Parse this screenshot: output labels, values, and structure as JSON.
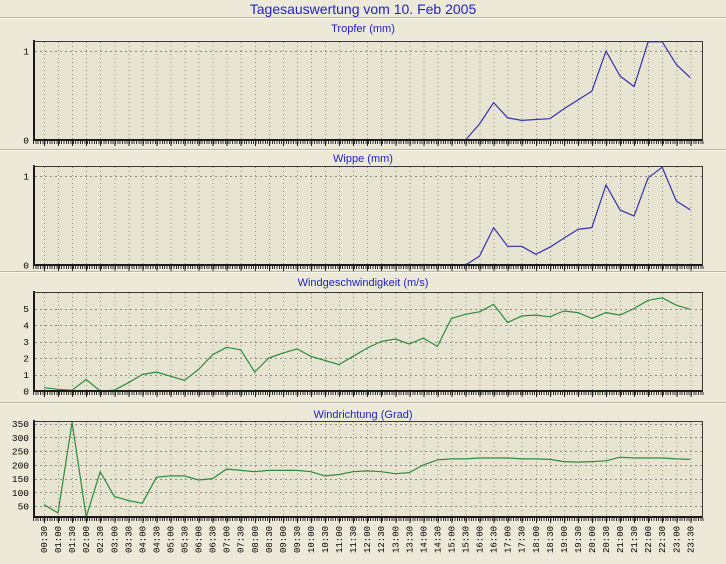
{
  "header": {
    "title": "Tagesauswertung vom 10. Feb 2005"
  },
  "colors": {
    "page_background": "#ece9d8",
    "plot_background": "#e8e4d2",
    "grid": "#8c8c87",
    "axis": "#1a1a1a",
    "title_blue": "#2222cc",
    "rain_line_blue": "#3232b4",
    "wind_line_green": "#2d8c3c"
  },
  "chart_data": [
    {
      "type": "line",
      "title": "Tropfer (mm)",
      "line_color": "#3232b4",
      "grid": "dashed",
      "y_ticks": [
        0,
        1
      ],
      "y_grid": [
        1
      ],
      "y_range": [
        0,
        1.113
      ],
      "categories": [
        "00:30",
        "01:00",
        "01:30",
        "02:00",
        "02:30",
        "03:00",
        "03:30",
        "04:00",
        "04:30",
        "05:00",
        "05:30",
        "06:00",
        "06:30",
        "07:00",
        "07:30",
        "08:00",
        "08:30",
        "09:00",
        "09:30",
        "10:00",
        "10:30",
        "11:00",
        "11:30",
        "12:00",
        "12:30",
        "13:00",
        "13:30",
        "14:00",
        "14:30",
        "15:00",
        "15:30",
        "16:00",
        "16:30",
        "17:00",
        "17:30",
        "18:00",
        "18:30",
        "19:00",
        "19:30",
        "20:00",
        "20:30",
        "21:00",
        "21:30",
        "22:00",
        "22:30",
        "23:00",
        "23:30"
      ],
      "values": [
        0,
        0,
        0,
        0,
        0,
        0,
        0,
        0,
        0,
        0,
        0,
        0,
        0,
        0,
        0,
        0,
        0,
        0,
        0,
        0,
        0,
        0,
        0,
        0,
        0,
        0,
        0,
        0,
        0,
        0,
        0,
        0.18,
        0.42,
        0.25,
        0.22,
        0.23,
        0.24,
        0.35,
        0.45,
        0.55,
        1.0,
        0.72,
        0.6,
        1.12,
        1.13,
        0.85,
        0.7
      ]
    },
    {
      "type": "line",
      "title": "Wippe (mm)",
      "line_color": "#3232b4",
      "grid": "dashed",
      "y_ticks": [
        0,
        1
      ],
      "y_grid": [
        1
      ],
      "y_range": [
        0,
        1.113
      ],
      "categories": [
        "00:30",
        "01:00",
        "01:30",
        "02:00",
        "02:30",
        "03:00",
        "03:30",
        "04:00",
        "04:30",
        "05:00",
        "05:30",
        "06:00",
        "06:30",
        "07:00",
        "07:30",
        "08:00",
        "08:30",
        "09:00",
        "09:30",
        "10:00",
        "10:30",
        "11:00",
        "11:30",
        "12:00",
        "12:30",
        "13:00",
        "13:30",
        "14:00",
        "14:30",
        "15:00",
        "15:30",
        "16:00",
        "16:30",
        "17:00",
        "17:30",
        "18:00",
        "18:30",
        "19:00",
        "19:30",
        "20:00",
        "20:30",
        "21:00",
        "21:30",
        "22:00",
        "22:30",
        "23:00",
        "23:30"
      ],
      "values": [
        0,
        0,
        0,
        0,
        0,
        0,
        0,
        0,
        0,
        0,
        0,
        0,
        0,
        0,
        0,
        0,
        0,
        0,
        0,
        0,
        0,
        0,
        0,
        0,
        0,
        0,
        0,
        0,
        0,
        0,
        0,
        0.1,
        0.42,
        0.21,
        0.21,
        0.12,
        0.2,
        0.3,
        0.4,
        0.42,
        0.9,
        0.62,
        0.55,
        0.98,
        1.1,
        0.72,
        0.62
      ]
    },
    {
      "type": "line",
      "title": "Windgeschwindigkeit (m/s)",
      "line_color": "#2d8c3c",
      "grid": "dashed",
      "y_ticks": [
        0,
        1,
        2,
        3,
        4,
        5
      ],
      "y_grid": [
        1,
        2,
        3,
        4,
        5
      ],
      "y_range": [
        0,
        6
      ],
      "categories": [
        "00:30",
        "01:00",
        "01:30",
        "02:00",
        "02:30",
        "03:00",
        "03:30",
        "04:00",
        "04:30",
        "05:00",
        "05:30",
        "06:00",
        "06:30",
        "07:00",
        "07:30",
        "08:00",
        "08:30",
        "09:00",
        "09:30",
        "10:00",
        "10:30",
        "11:00",
        "11:30",
        "12:00",
        "12:30",
        "13:00",
        "13:30",
        "14:00",
        "14:30",
        "15:00",
        "15:30",
        "16:00",
        "16:30",
        "17:00",
        "17:30",
        "18:00",
        "18:30",
        "19:00",
        "19:30",
        "20:00",
        "20:30",
        "21:00",
        "21:30",
        "22:00",
        "22:30",
        "23:00",
        "23:30"
      ],
      "values": [
        0.2,
        0.1,
        0.05,
        0.7,
        0.0,
        0.05,
        0.5,
        1.0,
        1.15,
        0.9,
        0.65,
        1.3,
        2.2,
        2.65,
        2.5,
        1.15,
        2.0,
        2.3,
        2.55,
        2.1,
        1.85,
        1.6,
        2.1,
        2.6,
        3.0,
        3.15,
        2.85,
        3.2,
        2.7,
        4.4,
        4.65,
        4.8,
        5.25,
        4.15,
        4.55,
        4.6,
        4.5,
        4.85,
        4.75,
        4.4,
        4.75,
        4.6,
        5.0,
        5.5,
        5.65,
        5.2,
        4.95
      ]
    },
    {
      "type": "line",
      "title": "Windrichtung (Grad)",
      "line_color": "#2d8c3c",
      "grid": "dashed",
      "y_ticks": [
        50,
        100,
        150,
        200,
        250,
        300,
        350
      ],
      "y_grid": [
        50,
        100,
        150,
        200,
        250,
        300,
        350
      ],
      "y_range": [
        10,
        360
      ],
      "categories": [
        "00:30",
        "01:00",
        "01:30",
        "02:00",
        "02:30",
        "03:00",
        "03:30",
        "04:00",
        "04:30",
        "05:00",
        "05:30",
        "06:00",
        "06:30",
        "07:00",
        "07:30",
        "08:00",
        "08:30",
        "09:00",
        "09:30",
        "10:00",
        "10:30",
        "11:00",
        "11:30",
        "12:00",
        "12:30",
        "13:00",
        "13:30",
        "14:00",
        "14:30",
        "15:00",
        "15:30",
        "16:00",
        "16:30",
        "17:00",
        "17:30",
        "18:00",
        "18:30",
        "19:00",
        "19:30",
        "20:00",
        "20:30",
        "21:00",
        "21:30",
        "22:00",
        "22:30",
        "23:00",
        "23:30"
      ],
      "values": [
        55,
        25,
        355,
        10,
        175,
        85,
        70,
        60,
        155,
        160,
        160,
        145,
        150,
        185,
        180,
        175,
        180,
        180,
        180,
        175,
        160,
        165,
        175,
        178,
        175,
        168,
        172,
        200,
        218,
        222,
        222,
        225,
        225,
        225,
        222,
        222,
        220,
        212,
        210,
        212,
        215,
        228,
        225,
        225,
        225,
        222,
        220
      ]
    }
  ]
}
